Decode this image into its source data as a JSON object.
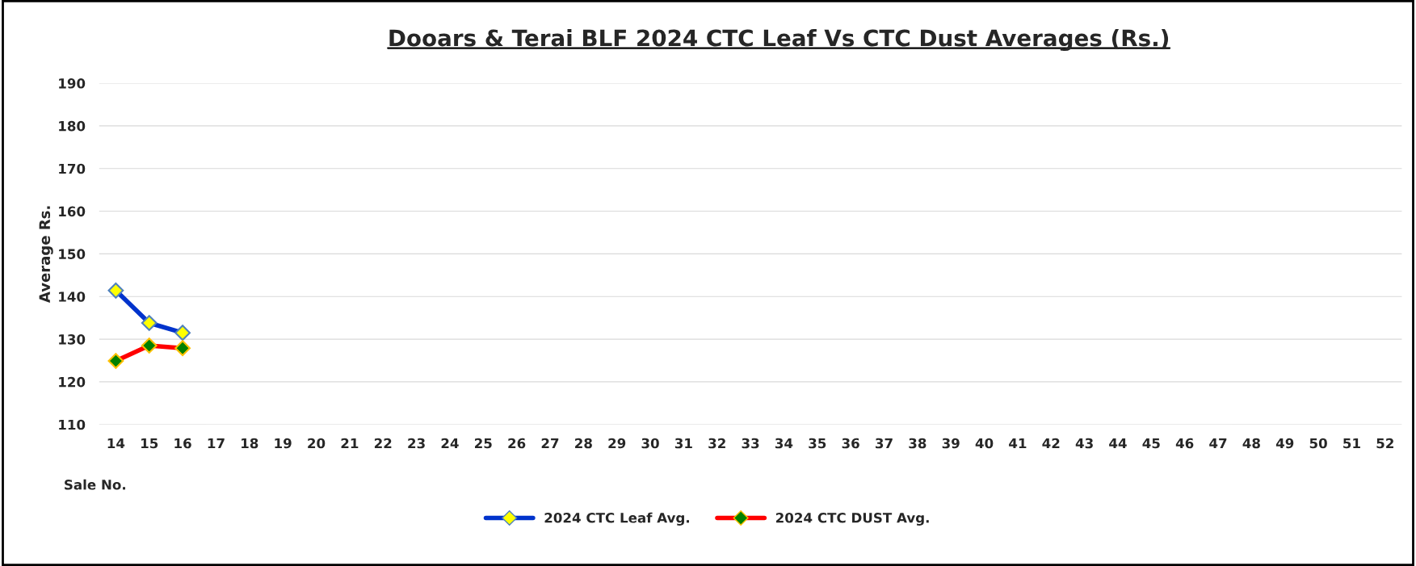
{
  "chart_data": {
    "type": "line",
    "title": "Dooars & Terai BLF 2024 CTC Leaf Vs CTC Dust Averages (Rs.)",
    "xlabel": "Sale No.",
    "ylabel": "Average Rs.",
    "categories": [
      "14",
      "15",
      "16",
      "17",
      "18",
      "19",
      "20",
      "21",
      "22",
      "23",
      "24",
      "25",
      "26",
      "27",
      "28",
      "29",
      "30",
      "31",
      "32",
      "33",
      "34",
      "35",
      "36",
      "37",
      "38",
      "39",
      "40",
      "41",
      "42",
      "43",
      "44",
      "45",
      "46",
      "47",
      "48",
      "49",
      "50",
      "51",
      "52"
    ],
    "series": [
      {
        "name": "2024 CTC Leaf Avg.",
        "color": "#0033cc",
        "values": [
          141.4,
          133.8,
          131.5,
          null,
          null,
          null,
          null,
          null,
          null,
          null,
          null,
          null,
          null,
          null,
          null,
          null,
          null,
          null,
          null,
          null,
          null,
          null,
          null,
          null,
          null,
          null,
          null,
          null,
          null,
          null,
          null,
          null,
          null,
          null,
          null,
          null,
          null,
          null,
          null
        ]
      },
      {
        "name": "2024 CTC DUST Avg.",
        "color": "#ff0000",
        "values": [
          124.9,
          128.5,
          127.9,
          null,
          null,
          null,
          null,
          null,
          null,
          null,
          null,
          null,
          null,
          null,
          null,
          null,
          null,
          null,
          null,
          null,
          null,
          null,
          null,
          null,
          null,
          null,
          null,
          null,
          null,
          null,
          null,
          null,
          null,
          null,
          null,
          null,
          null,
          null,
          null
        ]
      }
    ],
    "ylim": [
      110,
      190
    ],
    "yticks": [
      110,
      120,
      130,
      140,
      150,
      160,
      170,
      180,
      190
    ],
    "grid": "y",
    "legend": "bottom",
    "marker": "diamond",
    "line_style": "solid"
  }
}
